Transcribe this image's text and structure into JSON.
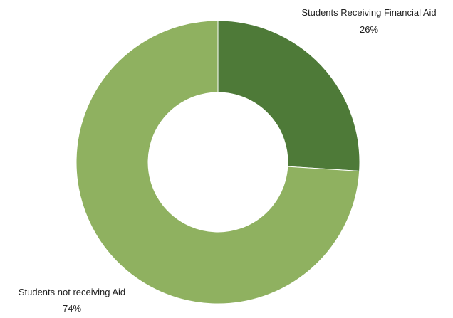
{
  "chart_data": {
    "type": "pie",
    "variant": "donut",
    "legend": "none",
    "slices": [
      {
        "label": "Students Receiving Financial Aid",
        "value": 26,
        "value_label": "26%",
        "color": "#4e7a38"
      },
      {
        "label": "Students not receiving Aid",
        "value": 74,
        "value_label": "74%",
        "color": "#8fb160"
      }
    ]
  }
}
